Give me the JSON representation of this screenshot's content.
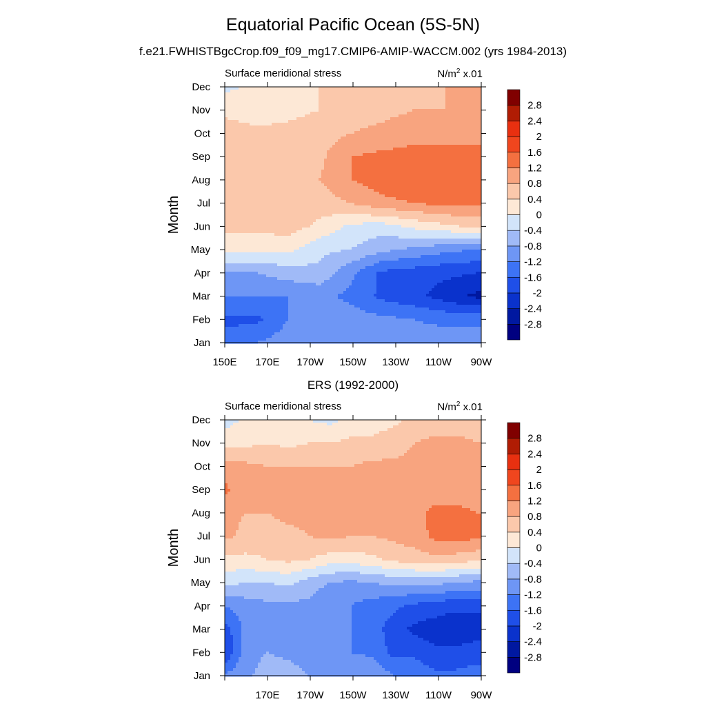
{
  "figure": {
    "title": "Equatorial Pacific Ocean (5S-5N)",
    "subtitle": "f.e21.FWHISTBgcCrop.f09_f09_mg17.CMIP6-AMIP-WACCM.002 (yrs 1984-2013)"
  },
  "levels": [
    -2.8,
    -2.4,
    -2,
    -1.6,
    -1.2,
    -0.8,
    -0.4,
    0,
    0.4,
    0.8,
    1.2,
    1.6,
    2,
    2.4,
    2.8
  ],
  "level_labels": [
    "-2.8",
    "-2.4",
    "-2",
    "-1.6",
    "-1.2",
    "-0.8",
    "-0.4",
    "0",
    "0.4",
    "0.8",
    "1.2",
    "1.6",
    "2",
    "2.4",
    "2.8"
  ],
  "colors": [
    "#000080",
    "#0018a0",
    "#0a32cc",
    "#1f4fe8",
    "#3d73f5",
    "#6e96f5",
    "#a0baf7",
    "#d2e4fa",
    "#fde8d6",
    "#fbc8ab",
    "#f8a47f",
    "#f47040",
    "#f0461e",
    "#e83010",
    "#b01c04",
    "#800000"
  ],
  "chart_data": [
    {
      "type": "heatmap",
      "panel_title": "",
      "left_label": "Surface meridional stress",
      "units_base": "N/m",
      "units_exp": "2",
      "units_suffix": " x.01",
      "ylabel": "Month",
      "x_tick_labels": [
        "150E",
        "170E",
        "170W",
        "150W",
        "130W",
        "110W",
        "90W"
      ],
      "y_tick_labels": [
        "Jan",
        "Feb",
        "Mar",
        "Apr",
        "May",
        "Jun",
        "Jul",
        "Aug",
        "Sep",
        "Oct",
        "Nov",
        "Dec"
      ],
      "x": [
        150,
        165,
        180,
        195,
        210,
        225,
        240,
        255,
        270
      ],
      "values": [
        [
          -1.4,
          -1.2,
          -1.0,
          -0.9,
          -0.9,
          -0.9,
          -1.0,
          -1.0,
          -1.0
        ],
        [
          -1.7,
          -1.7,
          -1.2,
          -1.0,
          -1.0,
          -1.1,
          -1.2,
          -1.3,
          -1.3
        ],
        [
          -1.2,
          -1.2,
          -1.2,
          -1.1,
          -1.3,
          -1.7,
          -1.9,
          -2.2,
          -2.5
        ],
        [
          -0.8,
          -0.8,
          -0.6,
          -0.5,
          -1.1,
          -1.7,
          -1.8,
          -1.9,
          -2.0
        ],
        [
          0.1,
          0.1,
          0.1,
          -0.3,
          -0.4,
          -0.7,
          -0.9,
          -1.1,
          -1.2
        ],
        [
          0.5,
          0.5,
          0.6,
          0.3,
          -0.1,
          -0.2,
          0.1,
          0.3,
          0.5
        ],
        [
          0.6,
          0.6,
          0.8,
          0.6,
          0.8,
          1.1,
          1.2,
          1.3,
          1.3
        ],
        [
          0.8,
          0.7,
          0.7,
          0.8,
          1.2,
          1.4,
          1.5,
          1.5,
          1.5
        ],
        [
          0.7,
          0.7,
          0.6,
          0.7,
          1.2,
          1.3,
          1.4,
          1.4,
          1.4
        ],
        [
          0.6,
          0.5,
          0.5,
          0.6,
          0.8,
          0.9,
          1.0,
          1.0,
          1.0
        ],
        [
          0.3,
          0.2,
          0.3,
          0.4,
          0.6,
          0.7,
          0.8,
          0.8,
          0.9
        ],
        [
          -0.1,
          0.1,
          0.2,
          0.4,
          0.5,
          0.6,
          0.7,
          0.8,
          0.8
        ]
      ],
      "xlim": [
        150,
        272
      ],
      "ylim": [
        1,
        12
      ]
    },
    {
      "type": "heatmap",
      "panel_title": "ERS (1992-2000)",
      "left_label": "Surface meridional stress",
      "units_base": "N/m",
      "units_exp": "2",
      "units_suffix": " x.01",
      "ylabel": "Month",
      "x_tick_labels": [
        "",
        "170E",
        "170W",
        "150W",
        "130W",
        "110W",
        "90W"
      ],
      "y_tick_labels": [
        "Jan",
        "Feb",
        "Mar",
        "Apr",
        "May",
        "Jun",
        "Jul",
        "Aug",
        "Sep",
        "Oct",
        "Nov",
        "Dec"
      ],
      "x": [
        150,
        160,
        170,
        180,
        190,
        200,
        210,
        220,
        230,
        240,
        250,
        260,
        270
      ],
      "values": [
        [
          -1.1,
          -0.9,
          -0.6,
          -0.6,
          -0.8,
          -0.9,
          -0.8,
          -0.8,
          -1.2,
          -1.3,
          -1.5,
          -1.5,
          -1.4
        ],
        [
          -2.0,
          -1.0,
          -0.8,
          -0.9,
          -1.0,
          -1.1,
          -1.2,
          -1.3,
          -1.7,
          -1.7,
          -1.9,
          -1.9,
          -1.8
        ],
        [
          -1.8,
          -1.1,
          -1.0,
          -1.0,
          -1.0,
          -1.1,
          -1.2,
          -1.4,
          -1.8,
          -2.1,
          -2.2,
          -2.3,
          -2.2
        ],
        [
          -1.2,
          -1.0,
          -0.9,
          -0.9,
          -0.9,
          -1.2,
          -1.2,
          -1.4,
          -1.5,
          -1.7,
          -1.8,
          -1.9,
          -1.9
        ],
        [
          -0.3,
          -0.4,
          -0.4,
          -0.3,
          -0.6,
          -0.8,
          -0.9,
          -0.8,
          -0.7,
          -0.7,
          -0.7,
          -0.8,
          -0.9
        ],
        [
          0.3,
          0.3,
          0.4,
          0.5,
          0.4,
          0.2,
          0.2,
          0.3,
          0.5,
          0.6,
          0.7,
          0.6,
          0.5
        ],
        [
          0.9,
          0.7,
          0.6,
          0.7,
          0.8,
          0.9,
          0.8,
          0.8,
          0.9,
          1.0,
          1.3,
          1.4,
          1.3
        ],
        [
          0.9,
          0.8,
          0.8,
          0.9,
          0.9,
          0.9,
          1.0,
          1.0,
          1.0,
          1.1,
          1.3,
          1.3,
          1.2
        ],
        [
          1.3,
          0.9,
          1.0,
          0.9,
          0.9,
          1.0,
          1.0,
          0.9,
          1.0,
          0.9,
          1.0,
          1.0,
          1.0
        ],
        [
          1.0,
          0.9,
          0.8,
          0.8,
          0.8,
          0.8,
          0.8,
          0.9,
          0.9,
          0.9,
          1.0,
          1.1,
          1.2
        ],
        [
          0.3,
          0.3,
          0.4,
          0.3,
          0.4,
          0.4,
          0.5,
          0.5,
          0.6,
          0.8,
          0.9,
          0.9,
          0.8
        ],
        [
          -0.2,
          0.1,
          0.1,
          0.1,
          0.0,
          -0.1,
          0.1,
          0.2,
          0.3,
          0.5,
          0.6,
          0.6,
          0.6
        ]
      ],
      "xlim": [
        150,
        272
      ],
      "ylim": [
        1,
        12
      ]
    }
  ]
}
